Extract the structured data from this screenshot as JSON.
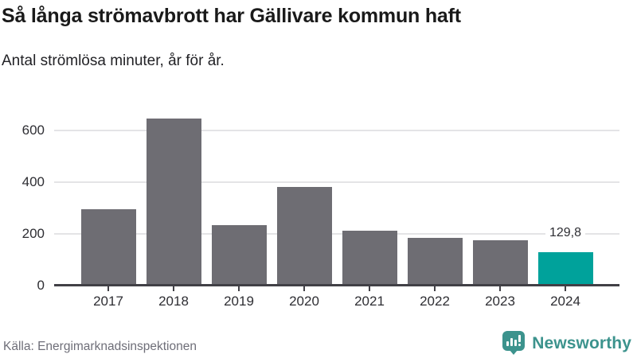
{
  "header": {
    "title": "Så långa strömavbrott har Gällivare kommun haft",
    "subtitle": "Antal strömlösa minuter, år för år."
  },
  "chart_data": {
    "type": "bar",
    "title": "Så långa strömavbrott har Gällivare kommun haft",
    "subtitle": "Antal strömlösa minuter, år för år.",
    "categories": [
      "2017",
      "2018",
      "2019",
      "2020",
      "2021",
      "2022",
      "2023",
      "2024"
    ],
    "values": [
      295,
      645,
      233,
      383,
      213,
      184,
      176,
      129.8
    ],
    "highlight_index": 7,
    "data_label": {
      "index": 7,
      "text": "129,8"
    },
    "yticks": [
      0,
      200,
      400,
      600
    ],
    "ylim": [
      0,
      660
    ],
    "xlabel": "",
    "ylabel": "",
    "grid": true,
    "legend": "none",
    "colors": {
      "bar": "#6E6D73",
      "highlight": "#00A29B",
      "gridline": "#E4E4E6",
      "axis": "#414046",
      "tick_label": "#2E2E33"
    }
  },
  "footer": {
    "source": "Källa: Energimarknadsinspektionen",
    "brand": "Newsworthy",
    "brand_color": "#3C938D",
    "logo_icon": "bar-chart-speech-bubble-icon"
  }
}
